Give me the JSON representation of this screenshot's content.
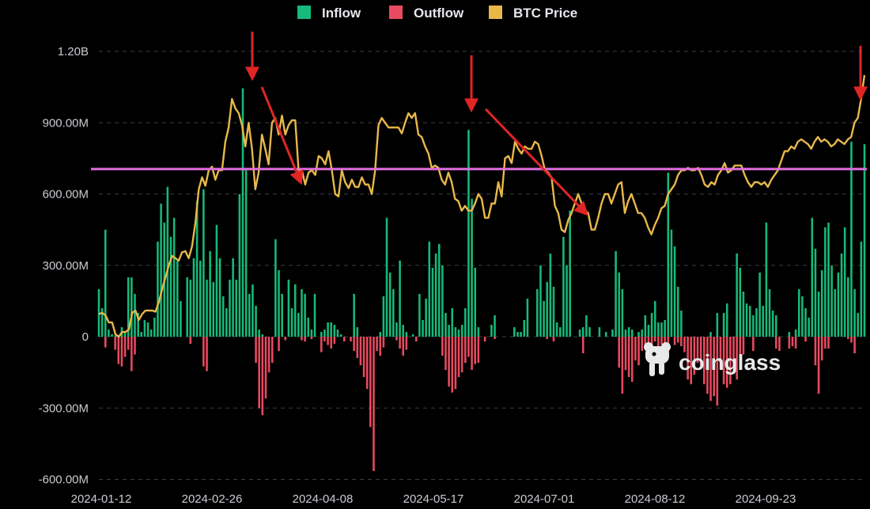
{
  "chart_data": {
    "type": "bar",
    "legend": {
      "position": "top-center",
      "items": [
        {
          "label": "Inflow",
          "color": "#16b979"
        },
        {
          "label": "Outflow",
          "color": "#e84a5f"
        },
        {
          "label": "BTC Price",
          "color": "#e8b84a"
        }
      ]
    },
    "y_ticks": [
      "1.20B",
      "900.00M",
      "600.00M",
      "300.00M",
      "0",
      "-300.00M",
      "-600.00M"
    ],
    "y_tick_values": [
      1200,
      900,
      600,
      300,
      0,
      -300,
      -600
    ],
    "x_ticks": [
      "2024-01-12",
      "2024-02-26",
      "2024-04-08",
      "2024-05-17",
      "2024-07-01",
      "2024-08-12",
      "2024-09-23"
    ],
    "ylim": [
      -600,
      1200
    ],
    "unit_note": "y values in millions USD",
    "grid": true,
    "colors": {
      "inflow": "#16b979",
      "outflow": "#e84a5f",
      "price": "#e8b84a",
      "reference_line": "#e46ee0",
      "arrow": "#e12525",
      "grid": "#3a3d44"
    },
    "reference_line_value": 705,
    "inflow_values": [
      200,
      120,
      450,
      30,
      10,
      5,
      0,
      40,
      20,
      250,
      250,
      180,
      100,
      20,
      70,
      60,
      30,
      80,
      400,
      560,
      480,
      630,
      420,
      500,
      320,
      150,
      0,
      250,
      240,
      330,
      570,
      320,
      620,
      240,
      360,
      230,
      470,
      330,
      170,
      120,
      240,
      330,
      240,
      600,
      1045,
      700,
      180,
      220,
      130,
      30,
      10,
      0,
      0,
      0,
      410,
      280,
      180,
      0,
      240,
      120,
      220,
      100,
      200,
      180,
      80,
      30,
      180,
      0,
      20,
      30,
      60,
      60,
      50,
      30,
      10,
      0,
      0,
      0,
      180,
      40,
      0,
      0,
      0,
      0,
      0,
      0,
      20,
      170,
      500,
      270,
      200,
      60,
      320,
      50,
      20,
      0,
      10,
      0,
      180,
      70,
      160,
      400,
      290,
      350,
      390,
      300,
      100,
      50,
      120,
      40,
      30,
      50,
      120,
      870,
      580,
      290,
      40,
      0,
      0,
      0,
      50,
      90,
      0,
      0,
      0,
      0,
      0,
      40,
      20,
      20,
      70,
      160,
      0,
      0,
      200,
      300,
      150,
      230,
      350,
      210,
      60,
      40,
      420,
      300,
      530,
      0,
      0,
      30,
      40,
      90,
      40,
      0,
      0,
      40,
      0,
      20,
      0,
      30,
      360,
      270,
      200,
      30,
      40,
      30,
      0,
      20,
      30,
      90,
      50,
      100,
      150,
      60,
      60,
      70,
      690,
      450,
      380,
      210,
      110,
      0,
      0,
      0,
      0,
      0,
      0,
      0,
      0,
      20,
      0,
      100,
      0,
      100,
      140,
      0,
      0,
      350,
      290,
      190,
      140,
      130,
      90,
      120,
      270,
      130,
      480,
      200,
      110,
      90,
      0,
      0,
      0,
      20,
      0,
      30,
      200,
      170,
      120,
      80,
      500,
      370,
      190,
      280,
      460,
      480,
      300,
      200,
      270,
      350,
      460,
      250,
      820,
      200,
      100,
      400,
      810
    ],
    "outflow_values": [
      0,
      0,
      -45,
      0,
      0,
      -55,
      -115,
      -125,
      -85,
      -55,
      -145,
      -75,
      0,
      0,
      0,
      0,
      0,
      0,
      0,
      0,
      0,
      0,
      0,
      0,
      0,
      0,
      0,
      0,
      -30,
      0,
      0,
      0,
      -125,
      -145,
      0,
      0,
      0,
      0,
      0,
      0,
      0,
      0,
      0,
      0,
      0,
      0,
      0,
      0,
      -110,
      -300,
      -330,
      -260,
      -150,
      -110,
      0,
      -60,
      0,
      -15,
      0,
      0,
      0,
      0,
      -15,
      -20,
      0,
      -10,
      0,
      0,
      -65,
      -20,
      -35,
      -50,
      -30,
      0,
      0,
      -20,
      0,
      -20,
      -60,
      -90,
      -120,
      -170,
      -220,
      -380,
      -565,
      -60,
      -80,
      -45,
      0,
      0,
      0,
      -15,
      -50,
      -80,
      -55,
      0,
      0,
      -20,
      0,
      0,
      0,
      0,
      0,
      0,
      0,
      -80,
      -140,
      -210,
      -235,
      -220,
      -170,
      -150,
      -110,
      -85,
      -140,
      -115,
      -110,
      0,
      -20,
      0,
      0,
      -10,
      0,
      0,
      0,
      0,
      0,
      0,
      0,
      0,
      0,
      0,
      0,
      0,
      0,
      0,
      0,
      -10,
      0,
      -20,
      0,
      0,
      0,
      0,
      0,
      0,
      0,
      0,
      -70,
      0,
      0,
      0,
      0,
      0,
      0,
      0,
      0,
      0,
      0,
      -130,
      -240,
      -140,
      -170,
      -190,
      -100,
      -120,
      -60,
      -40,
      -100,
      -80,
      -20,
      -40,
      -35,
      -55,
      -65,
      0,
      -35,
      -25,
      -40,
      -65,
      -180,
      -200,
      -160,
      -110,
      -120,
      -200,
      -240,
      -270,
      -250,
      -290,
      -140,
      -200,
      -215,
      -200,
      -120,
      -180,
      -90,
      -75,
      0,
      0,
      -60,
      0,
      0,
      0,
      0,
      0,
      0,
      -50,
      -60,
      0,
      0,
      -50,
      -40,
      -50,
      0,
      0,
      -20,
      0,
      0,
      -120,
      -240,
      -100,
      -50,
      -50,
      0,
      0,
      0,
      0,
      0,
      -10,
      -25,
      -70,
      0,
      0,
      0,
      0,
      0,
      0
    ],
    "btc_price_values": [
      95,
      100,
      90,
      60,
      60,
      10,
      0,
      20,
      20,
      30,
      100,
      110,
      70,
      95,
      110,
      110,
      110,
      105,
      145,
      200,
      250,
      300,
      340,
      330,
      320,
      355,
      360,
      330,
      380,
      480,
      620,
      670,
      635,
      700,
      715,
      660,
      700,
      700,
      820,
      880,
      1000,
      960,
      940,
      890,
      800,
      900,
      790,
      620,
      690,
      850,
      790,
      725,
      900,
      920,
      850,
      930,
      850,
      890,
      910,
      910,
      700,
      700,
      640,
      690,
      700,
      680,
      760,
      750,
      725,
      780,
      700,
      600,
      590,
      700,
      650,
      625,
      660,
      630,
      630,
      670,
      640,
      640,
      600,
      700,
      890,
      920,
      900,
      880,
      880,
      880,
      880,
      855,
      900,
      940,
      920,
      940,
      850,
      840,
      800,
      770,
      710,
      720,
      710,
      660,
      640,
      690,
      650,
      580,
      570,
      530,
      550,
      530,
      530,
      560,
      600,
      580,
      500,
      500,
      560,
      560,
      650,
      590,
      750,
      760,
      730,
      820,
      790,
      770,
      800,
      790,
      790,
      820,
      810,
      760,
      700,
      690,
      670,
      550,
      520,
      450,
      440,
      490,
      520,
      560,
      600,
      560,
      530,
      520,
      450,
      450,
      500,
      560,
      600,
      600,
      560,
      600,
      640,
      650,
      520,
      570,
      600,
      560,
      520,
      520,
      500,
      460,
      430,
      470,
      500,
      540,
      550,
      600,
      620,
      640,
      680,
      700,
      700,
      710,
      700,
      700,
      710,
      680,
      640,
      630,
      650,
      640,
      680,
      700,
      730,
      690,
      700,
      720,
      720,
      720,
      680,
      650,
      630,
      650,
      650,
      640,
      650,
      630,
      660,
      680,
      700,
      740,
      780,
      780,
      800,
      790,
      820,
      830,
      820,
      810,
      790,
      820,
      840,
      820,
      830,
      820,
      800,
      810,
      830,
      820,
      810,
      830,
      840,
      900,
      920,
      1000,
      1100
    ]
  },
  "watermark": {
    "text": "coinglass",
    "icon": "coinglass-logo-icon"
  }
}
